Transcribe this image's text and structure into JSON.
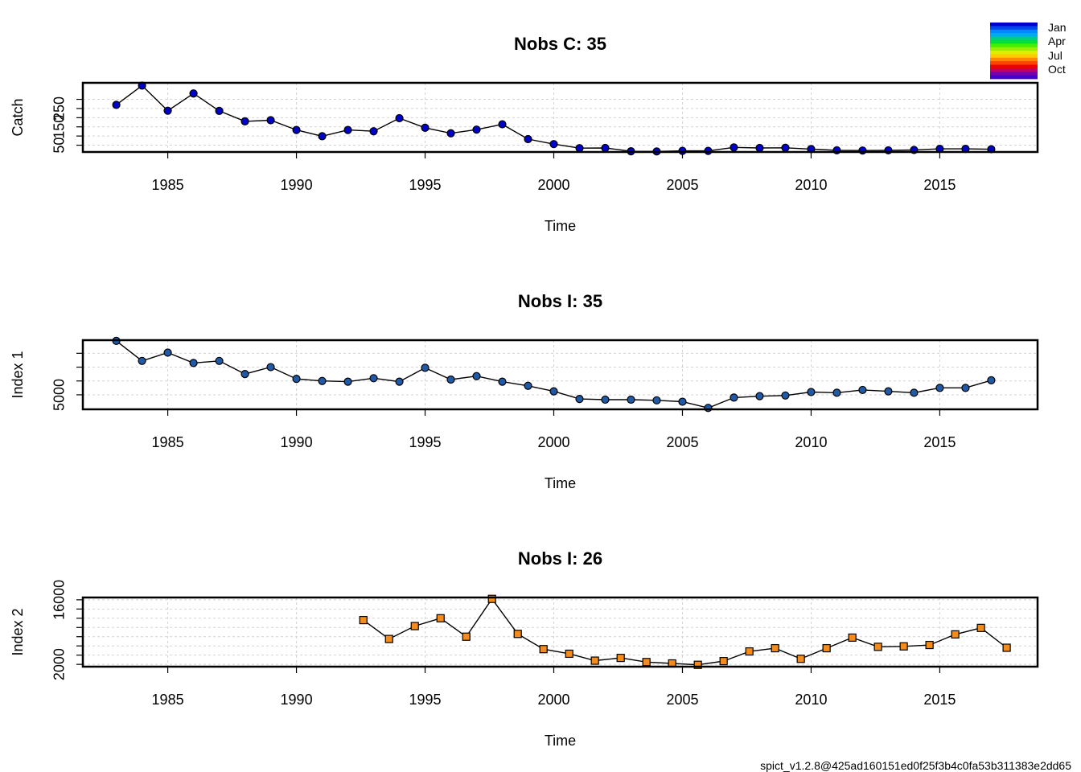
{
  "footer": "spict_v1.2.8@425ad160151ed0f25f3b4c0fa53b311383e2dd65",
  "legend": {
    "labels": [
      "Jan",
      "Apr",
      "Jul",
      "Oct"
    ],
    "colors": [
      "#0000cc",
      "#0044ee",
      "#0088ff",
      "#00aaee",
      "#00cc88",
      "#00dd44",
      "#44ee00",
      "#99ee00",
      "#ddee00",
      "#ffcc00",
      "#ff8800",
      "#ff4400",
      "#ee0000",
      "#bb0066",
      "#7700aa",
      "#4400cc"
    ]
  },
  "chart_data": [
    {
      "type": "line",
      "title": "Nobs C: 35",
      "xlabel": "Time",
      "ylabel": "Catch",
      "xlim": [
        1981.7,
        2018.8
      ],
      "ylim": [
        13,
        390
      ],
      "xticks": [
        1985,
        1990,
        1995,
        2000,
        2005,
        2010,
        2015
      ],
      "yticks": [
        50,
        100,
        150,
        200,
        250,
        300
      ],
      "ytick_labels": [
        "50",
        "",
        "150",
        "",
        "250",
        ""
      ],
      "grid": true,
      "marker": "circle",
      "color": "#0000cc",
      "x": [
        1983,
        1984,
        1985,
        1986,
        1987,
        1988,
        1989,
        1990,
        1991,
        1992,
        1993,
        1994,
        1995,
        1996,
        1997,
        1998,
        1999,
        2000,
        2001,
        2002,
        2003,
        2004,
        2005,
        2006,
        2007,
        2008,
        2009,
        2010,
        2011,
        2012,
        2013,
        2014,
        2015,
        2016,
        2017
      ],
      "y": [
        270,
        375,
        238,
        332,
        237,
        180,
        186,
        133,
        99,
        133,
        126,
        197,
        145,
        115,
        135,
        164,
        83,
        56,
        34,
        35,
        17,
        16,
        19,
        19,
        38,
        35,
        36,
        29,
        22,
        21,
        22,
        24,
        30,
        30,
        28
      ]
    },
    {
      "type": "line",
      "title": "Nobs I: 35",
      "xlabel": "Time",
      "ylabel": "Index 1",
      "xlim": [
        1981.7,
        2018.8
      ],
      "ylim": [
        2900,
        12900
      ],
      "xticks": [
        1985,
        1990,
        1995,
        2000,
        2005,
        2010,
        2015
      ],
      "yticks": [
        5000,
        7000,
        9000,
        11000
      ],
      "ytick_labels": [
        "5000",
        "",
        "",
        ""
      ],
      "grid": true,
      "marker": "circle",
      "color": "#1f5aa8",
      "x": [
        1983,
        1984,
        1985,
        1986,
        1987,
        1988,
        1989,
        1990,
        1991,
        1992,
        1993,
        1994,
        1995,
        1996,
        1997,
        1998,
        1999,
        2000,
        2001,
        2002,
        2003,
        2004,
        2005,
        2006,
        2007,
        2008,
        2009,
        2010,
        2011,
        2012,
        2013,
        2014,
        2015,
        2016,
        2017
      ],
      "y": [
        12800,
        9900,
        11100,
        9600,
        9900,
        8000,
        9000,
        7300,
        7000,
        6900,
        7400,
        6900,
        8900,
        7200,
        7700,
        6900,
        6300,
        5500,
        4400,
        4300,
        4300,
        4200,
        4000,
        3100,
        4600,
        4800,
        4900,
        5400,
        5300,
        5700,
        5500,
        5300,
        6000,
        6000,
        7100
      ]
    },
    {
      "type": "line",
      "title": "Nobs I: 26",
      "xlabel": "Time",
      "ylabel": "Index 2",
      "xlim": [
        1981.7,
        2018.8
      ],
      "ylim": [
        1500,
        16500
      ],
      "xticks": [
        1985,
        1990,
        1995,
        2000,
        2005,
        2010,
        2015
      ],
      "yticks": [
        2000,
        4000,
        6000,
        8000,
        10000,
        12000,
        14000,
        16000
      ],
      "ytick_labels": [
        "2000",
        "",
        "",
        "",
        "",
        "",
        "",
        "16000"
      ],
      "grid": true,
      "marker": "square",
      "color": "#f28c1e",
      "x": [
        1992.6,
        1993.6,
        1994.6,
        1995.6,
        1996.6,
        1997.6,
        1998.6,
        1999.6,
        2000.6,
        2001.6,
        2002.6,
        2003.6,
        2004.6,
        2005.6,
        2006.6,
        2007.6,
        2008.6,
        2009.6,
        2010.6,
        2011.6,
        2012.6,
        2013.6,
        2014.6,
        2015.6,
        2016.6,
        2017.6
      ],
      "y": [
        11600,
        7500,
        10300,
        12000,
        8000,
        16200,
        8600,
        5300,
        4300,
        2800,
        3400,
        2500,
        2200,
        1900,
        2700,
        4800,
        5500,
        3200,
        5500,
        7800,
        5800,
        5900,
        6200,
        8500,
        9900,
        5600
      ]
    }
  ]
}
